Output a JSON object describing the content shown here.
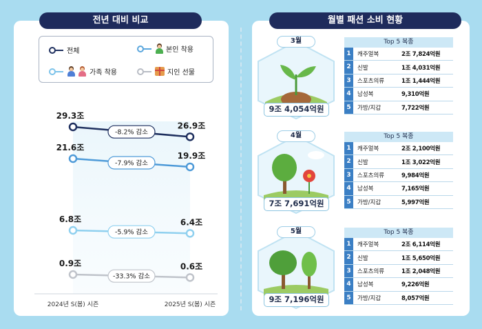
{
  "left": {
    "title": "전년 대비 비교",
    "legend": [
      {
        "label": "전체",
        "color": "#1e2f5e",
        "icon": "line-circle"
      },
      {
        "label": "본인 착용",
        "color": "#5aa6dd",
        "icon": "person-icon"
      },
      {
        "label": "가족 착용",
        "color": "#7cc3ea",
        "icon": "family-icon"
      },
      {
        "label": "지인 선물",
        "color": "#b8bcc4",
        "icon": "gift-icon"
      }
    ]
  },
  "chart_data": {
    "type": "line",
    "x": [
      "2024년 S(봄) 시즌",
      "2025년 S(봄) 시즌"
    ],
    "series": [
      {
        "name": "전체",
        "values": [
          29.3,
          26.9
        ],
        "labels": [
          "29.3조",
          "26.9조"
        ],
        "change": "-8.2% 감소",
        "color": "#1e2f5e"
      },
      {
        "name": "본인 착용",
        "values": [
          21.6,
          19.9
        ],
        "labels": [
          "21.6조",
          "19.9조"
        ],
        "change": "-7.9% 감소",
        "color": "#4d9ad8"
      },
      {
        "name": "가족 착용",
        "values": [
          6.8,
          6.4
        ],
        "labels": [
          "6.8조",
          "6.4조"
        ],
        "change": "-5.9% 감소",
        "color": "#8fd0ef"
      },
      {
        "name": "지인 선물",
        "values": [
          0.9,
          0.6
        ],
        "labels": [
          "0.9조",
          "0.6조"
        ],
        "change": "-33.3% 감소",
        "color": "#bfc3ca"
      }
    ]
  },
  "right": {
    "title": "월별 패션 소비 현황",
    "top5_title": "Top 5 복종",
    "months": [
      {
        "month": "3월",
        "total": "9조 4,054억원",
        "items": [
          {
            "rank": "1",
            "name": "캐주얼복",
            "value": "2조 7,824억원"
          },
          {
            "rank": "2",
            "name": "신발",
            "value": "1조 4,031억원"
          },
          {
            "rank": "3",
            "name": "스포츠의류",
            "value": "1조 1,444억원"
          },
          {
            "rank": "4",
            "name": "남성복",
            "value": "9,310억원"
          },
          {
            "rank": "5",
            "name": "가방/지갑",
            "value": "7,722억원"
          }
        ]
      },
      {
        "month": "4월",
        "total": "7조 7,691억원",
        "items": [
          {
            "rank": "1",
            "name": "캐주얼복",
            "value": "2조 2,100억원"
          },
          {
            "rank": "2",
            "name": "신발",
            "value": "1조 3,022억원"
          },
          {
            "rank": "3",
            "name": "스포츠의류",
            "value": "9,984억원"
          },
          {
            "rank": "4",
            "name": "남성복",
            "value": "7,165억원"
          },
          {
            "rank": "5",
            "name": "가방/지갑",
            "value": "5,997억원"
          }
        ]
      },
      {
        "month": "5월",
        "total": "9조 7,196억원",
        "items": [
          {
            "rank": "1",
            "name": "캐주얼복",
            "value": "2조 6,114억원"
          },
          {
            "rank": "2",
            "name": "신발",
            "value": "1조 5,650억원"
          },
          {
            "rank": "3",
            "name": "스포츠의류",
            "value": "1조 2,048억원"
          },
          {
            "rank": "4",
            "name": "남성복",
            "value": "9,226억원"
          },
          {
            "rank": "5",
            "name": "가방/지갑",
            "value": "8,057억원"
          }
        ]
      }
    ]
  }
}
